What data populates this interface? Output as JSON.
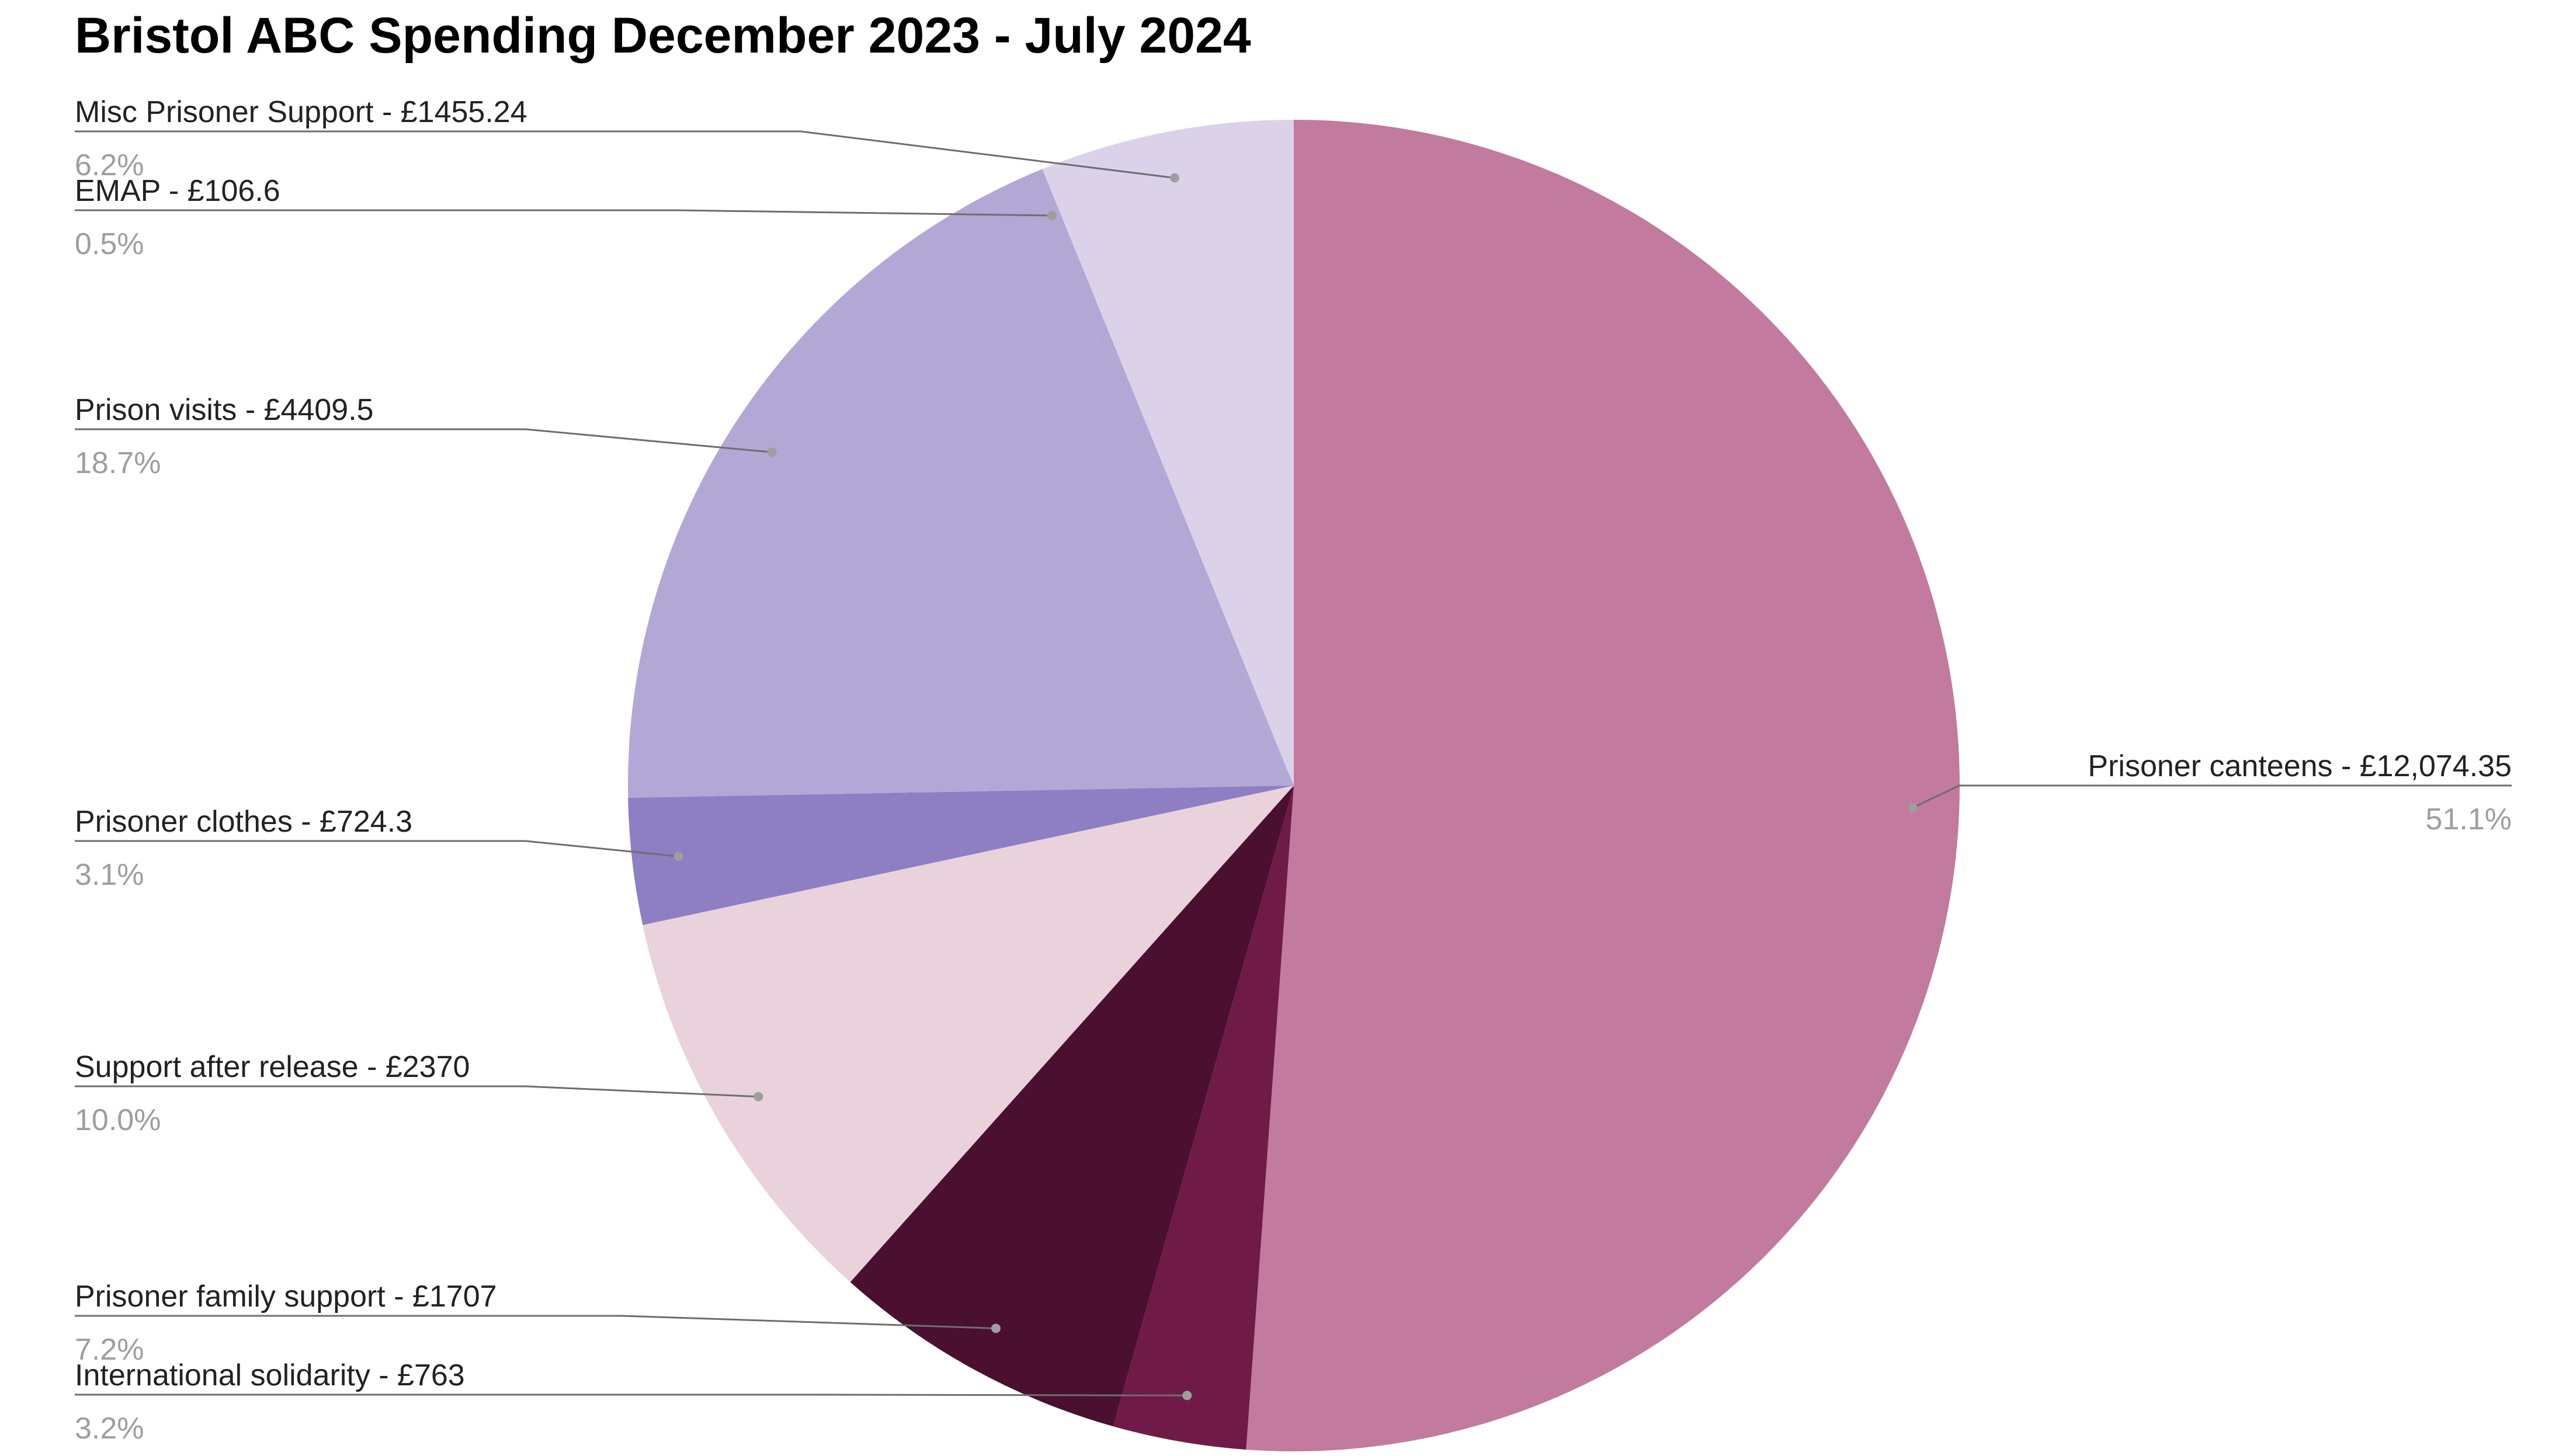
{
  "chart_data": {
    "type": "pie",
    "title": "Bristol ABC Spending December 2023 - July 2024",
    "legend": "none",
    "slices": [
      {
        "label": "Prisoner canteens - £12,074.35",
        "value": 12074.35,
        "percent": "51.1%",
        "color": "#c27a9e"
      },
      {
        "label": "International solidarity - £763",
        "value": 763,
        "percent": "3.2%",
        "color": "#701b47"
      },
      {
        "label": "Prisoner family support - £1707",
        "value": 1707,
        "percent": "7.2%",
        "color": "#4b0f2f"
      },
      {
        "label": "Support after release - £2370",
        "value": 2370,
        "percent": "10.0%",
        "color": "#e9d2dc"
      },
      {
        "label": "Prisoner clothes - £724.3",
        "value": 724.3,
        "percent": "3.1%",
        "color": "#8e7ec4"
      },
      {
        "label": "Prison visits - £4409.5",
        "value": 4409.5,
        "percent": "18.7%",
        "color": "#b3a7d6"
      },
      {
        "label": "EMAP - £106.6",
        "value": 106.6,
        "percent": "0.5%",
        "color": "#b3a7d6"
      },
      {
        "label": "Misc Prisoner Support - £1455.24",
        "value": 1455.24,
        "percent": "6.2%",
        "color": "#dbd2ea"
      }
    ]
  }
}
